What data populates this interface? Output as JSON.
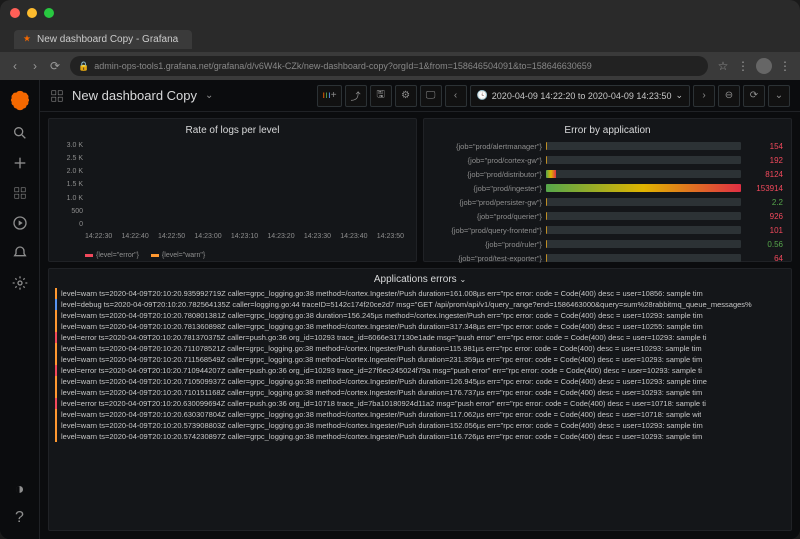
{
  "window": {
    "tab_title": "New dashboard Copy - Grafana",
    "url": "admin-ops-tools1.grafana.net/grafana/d/v6W4k-CZk/new-dashboard-copy?orgId=1&from=158646504091&to=158646630659"
  },
  "dashboard": {
    "title": "New dashboard Copy",
    "time_range": "2020-04-09 14:22:20 to 2020-04-09 14:23:50"
  },
  "colors": {
    "error": "#f2495c",
    "warn": "#ff9830",
    "debug": "#5794f2",
    "green": "#56a64b",
    "toolbar_border": "#2c3235"
  },
  "rate_panel": {
    "title": "Rate of logs per level",
    "y_ticks": [
      "3.0 K",
      "2.5 K",
      "2.0 K",
      "1.5 K",
      "1.0 K",
      "500",
      "0"
    ],
    "x_ticks": [
      "14:22:30",
      "14:22:40",
      "14:22:50",
      "14:23:00",
      "14:23:10",
      "14:23:20",
      "14:23:30",
      "14:23:40",
      "14:23:50"
    ],
    "legend": [
      {
        "label": "{level=\"error\"}",
        "color": "#f2495c"
      },
      {
        "label": "{level=\"warn\"}",
        "color": "#ff9830"
      }
    ],
    "bars": [
      {
        "warn": 2,
        "error": 0
      },
      {
        "warn": 3,
        "error": 0
      },
      {
        "warn": 8,
        "error": 0
      },
      {
        "warn": 55,
        "error": 5
      },
      {
        "warn": 80,
        "error": 8
      },
      {
        "warn": 85,
        "error": 10
      },
      {
        "warn": 70,
        "error": 7
      },
      {
        "warn": 60,
        "error": 6
      },
      {
        "warn": 45,
        "error": 4
      },
      {
        "warn": 30,
        "error": 3
      },
      {
        "warn": 25,
        "error": 2
      },
      {
        "warn": 15,
        "error": 1
      },
      {
        "warn": 10,
        "error": 0
      },
      {
        "warn": 5,
        "error": 0
      },
      {
        "warn": 4,
        "error": 0
      },
      {
        "warn": 4,
        "error": 0
      },
      {
        "warn": 3,
        "error": 0
      },
      {
        "warn": 2,
        "error": 0
      },
      {
        "warn": 3,
        "error": 0
      },
      {
        "warn": 4,
        "error": 0
      },
      {
        "warn": 6,
        "error": 0
      },
      {
        "warn": 8,
        "error": 1
      },
      {
        "warn": 10,
        "error": 2
      },
      {
        "warn": 10,
        "error": 2
      },
      {
        "warn": 8,
        "error": 1
      },
      {
        "warn": 6,
        "error": 0
      },
      {
        "warn": 6,
        "error": 0
      },
      {
        "warn": 5,
        "error": 0
      },
      {
        "warn": 4,
        "error": 0
      },
      {
        "warn": 3,
        "error": 0
      },
      {
        "warn": 30,
        "error": 3
      },
      {
        "warn": 60,
        "error": 6
      },
      {
        "warn": 70,
        "error": 7
      },
      {
        "warn": 55,
        "error": 5
      },
      {
        "warn": 45,
        "error": 4
      },
      {
        "warn": 35,
        "error": 3
      },
      {
        "warn": 25,
        "error": 2
      },
      {
        "warn": 10,
        "error": 1
      },
      {
        "warn": 5,
        "error": 0
      },
      {
        "warn": 3,
        "error": 0
      },
      {
        "warn": 2,
        "error": 0
      },
      {
        "warn": 2,
        "error": 0
      },
      {
        "warn": 2,
        "error": 0
      },
      {
        "warn": 2,
        "error": 0
      },
      {
        "warn": 2,
        "error": 0
      },
      {
        "warn": 2,
        "error": 0
      },
      {
        "warn": 2,
        "error": 0
      },
      {
        "warn": 2,
        "error": 0
      },
      {
        "warn": 2,
        "error": 0
      },
      {
        "warn": 2,
        "error": 0
      }
    ]
  },
  "error_panel": {
    "title": "Error by application",
    "rows": [
      {
        "label": "{job=\"prod/alertmanager\"}",
        "pct": 0.1,
        "value": "154",
        "color": "#f2495c"
      },
      {
        "label": "{job=\"prod/cortex-gw\"}",
        "pct": 0.12,
        "value": "192",
        "color": "#f2495c"
      },
      {
        "label": "{job=\"prod/distributor\"}",
        "pct": 5.3,
        "value": "8124",
        "color": "#f2495c"
      },
      {
        "label": "{job=\"prod/ingester\"}",
        "pct": 100,
        "value": "153914",
        "color": "#f2495c"
      },
      {
        "label": "{job=\"prod/persister-gw\"}",
        "pct": 0.001,
        "value": "2.2",
        "color": "#56a64b"
      },
      {
        "label": "{job=\"prod/querier\"}",
        "pct": 0.6,
        "value": "926",
        "color": "#f2495c"
      },
      {
        "label": "{job=\"prod/query-frontend\"}",
        "pct": 0.07,
        "value": "101",
        "color": "#f2495c"
      },
      {
        "label": "{job=\"prod/ruler\"}",
        "pct": 0.0004,
        "value": "0.56",
        "color": "#56a64b"
      },
      {
        "label": "{job=\"prod/test-exporter\"}",
        "pct": 0.04,
        "value": "64",
        "color": "#f2495c"
      }
    ]
  },
  "logs_panel": {
    "title": "Applications errors",
    "lines": [
      {
        "level": "warn",
        "text": "level=warn ts=2020-04-09T20:10:20.935992719Z caller=grpc_logging.go:38 method=/cortex.Ingester/Push duration=161.008µs err=\"rpc error: code = Code(400) desc = user=10856: sample tim"
      },
      {
        "level": "debug",
        "text": "level=debug ts=2020-04-09T20:10:20.782564135Z caller=logging.go:44 traceID=5142c174f20ce2d7 msg=\"GET /api/prom/api/v1/query_range?end=1586463000&query=sum%28rabbitmq_queue_messages%"
      },
      {
        "level": "warn",
        "text": "level=warn ts=2020-04-09T20:10:20.780801381Z caller=grpc_logging.go:38 duration=156.245µs method=/cortex.Ingester/Push err=\"rpc error: code = Code(400) desc = user=10293: sample tim"
      },
      {
        "level": "warn",
        "text": "level=warn ts=2020-04-09T20:10:20.781360898Z caller=grpc_logging.go:38 method=/cortex.Ingester/Push duration=317.348µs err=\"rpc error: code = Code(400) desc = user=10255: sample tim"
      },
      {
        "level": "error",
        "text": "level=error ts=2020-04-09T20:10:20.781370375Z caller=push.go:36 org_id=10293 trace_id=6066e317130e1ade msg=\"push error\" err=\"rpc error: code = Code(400) desc = user=10293: sample ti"
      },
      {
        "level": "warn",
        "text": "level=warn ts=2020-04-09T20:10:20.711078521Z caller=grpc_logging.go:38 method=/cortex.Ingester/Push duration=115.981µs err=\"rpc error: code = Code(400) desc = user=10293: sample tim"
      },
      {
        "level": "warn",
        "text": "level=warn ts=2020-04-09T20:10:20.711568549Z caller=grpc_logging.go:38 method=/cortex.Ingester/Push duration=231.359µs err=\"rpc error: code = Code(400) desc = user=10293: sample tim"
      },
      {
        "level": "error",
        "text": "level=error ts=2020-04-09T20:10:20.710944207Z caller=push.go:36 org_id=10293 trace_id=27f6ec245024f79a msg=\"push error\" err=\"rpc error: code = Code(400) desc = user=10293: sample ti"
      },
      {
        "level": "warn",
        "text": "level=warn ts=2020-04-09T20:10:20.710509937Z caller=grpc_logging.go:38 method=/cortex.Ingester/Push duration=126.945µs err=\"rpc error: code = Code(400) desc = user=10293: sample time"
      },
      {
        "level": "warn",
        "text": "level=warn ts=2020-04-09T20:10:20.710151168Z caller=grpc_logging.go:38 method=/cortex.Ingester/Push duration=176.737µs err=\"rpc error: code = Code(400) desc = user=10293: sample tim"
      },
      {
        "level": "error",
        "text": "level=error ts=2020-04-09T20:10:20.630099694Z caller=push.go:36 org_id=10718 trace_id=7ba10180924d11a2 msg=\"push error\" err=\"rpc error: code = Code(400) desc = user=10718: sample ti"
      },
      {
        "level": "warn",
        "text": "level=warn ts=2020-04-09T20:10:20.630307804Z caller=grpc_logging.go:38 method=/cortex.Ingester/Push duration=117.062µs err=\"rpc error: code = Code(400) desc = user=10718: sample wit"
      },
      {
        "level": "warn",
        "text": "level=warn ts=2020-04-09T20:10:20.573908803Z caller=grpc_logging.go:38 method=/cortex.Ingester/Push duration=152.056µs err=\"rpc error: code = Code(400) desc = user=10293: sample tim"
      },
      {
        "level": "warn",
        "text": "level=warn ts=2020-04-09T20:10:20.574230897Z caller=grpc_logging.go:38 method=/cortex.Ingester/Push duration=116.726µs err=\"rpc error: code = Code(400) desc = user=10293: sample tim"
      }
    ]
  }
}
